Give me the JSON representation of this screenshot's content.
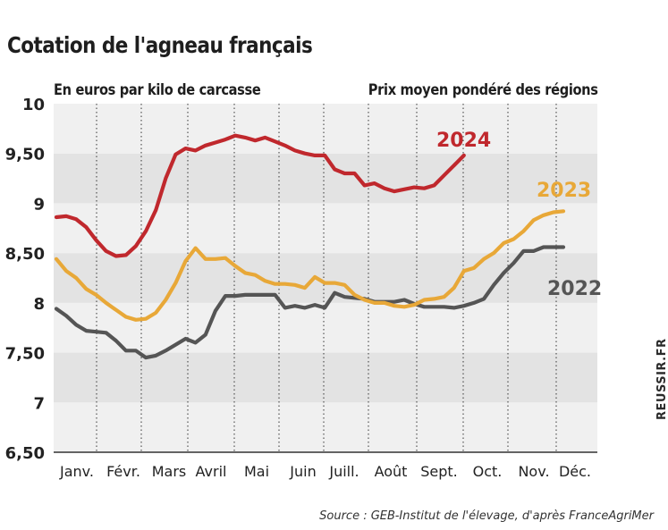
{
  "chart_data": {
    "type": "line",
    "title": "Cotation de l'agneau français",
    "subtitle": "En euros par kilo de carcasse",
    "subtitle_right": "Prix moyen pondéré des régions",
    "ylim": [
      6.5,
      10
    ],
    "y_ticks": [
      {
        "value": 10,
        "label": "10"
      },
      {
        "value": 9.5,
        "label": "9,50"
      },
      {
        "value": 9,
        "label": "9"
      },
      {
        "value": 8.5,
        "label": "8,50"
      },
      {
        "value": 8,
        "label": "8"
      },
      {
        "value": 7.5,
        "label": "7,50"
      },
      {
        "value": 7,
        "label": "7"
      },
      {
        "value": 6.5,
        "label": "6,50"
      }
    ],
    "xlim": [
      0,
      52
    ],
    "x_ticks": [
      "Janv.",
      "Févr.",
      "Mars",
      "Avril",
      "Mai",
      "Juin",
      "Juill.",
      "Août",
      "Sept.",
      "Oct.",
      "Nov.",
      "Déc."
    ],
    "series": [
      {
        "name": "2022",
        "label": "2022",
        "color": "#555555",
        "points": [
          [
            0,
            7.94
          ],
          [
            1,
            7.87
          ],
          [
            2,
            7.78
          ],
          [
            3,
            7.72
          ],
          [
            4,
            7.71
          ],
          [
            5,
            7.7
          ],
          [
            6,
            7.62
          ],
          [
            7,
            7.52
          ],
          [
            8,
            7.52
          ],
          [
            9,
            7.45
          ],
          [
            10,
            7.47
          ],
          [
            11,
            7.52
          ],
          [
            12,
            7.58
          ],
          [
            13,
            7.64
          ],
          [
            14,
            7.6
          ],
          [
            15,
            7.68
          ],
          [
            16,
            7.92
          ],
          [
            17,
            8.07
          ],
          [
            18,
            8.07
          ],
          [
            19,
            8.08
          ],
          [
            20,
            8.08
          ],
          [
            21,
            8.08
          ],
          [
            22,
            8.08
          ],
          [
            23,
            7.95
          ],
          [
            24,
            7.97
          ],
          [
            25,
            7.95
          ],
          [
            26,
            7.98
          ],
          [
            27,
            7.95
          ],
          [
            28,
            8.1
          ],
          [
            29,
            8.06
          ],
          [
            30,
            8.05
          ],
          [
            31,
            8.04
          ],
          [
            32,
            8.01
          ],
          [
            33,
            8.01
          ],
          [
            34,
            8.01
          ],
          [
            35,
            8.03
          ],
          [
            36,
            7.99
          ],
          [
            37,
            7.96
          ],
          [
            38,
            7.96
          ],
          [
            39,
            7.96
          ],
          [
            40,
            7.95
          ],
          [
            41,
            7.97
          ],
          [
            42,
            8.0
          ],
          [
            43,
            8.04
          ],
          [
            44,
            8.18
          ],
          [
            45,
            8.3
          ],
          [
            46,
            8.4
          ],
          [
            47,
            8.52
          ],
          [
            48,
            8.52
          ],
          [
            49,
            8.56
          ],
          [
            50,
            8.56
          ],
          [
            51,
            8.56
          ]
        ]
      },
      {
        "name": "2023",
        "label": "2023",
        "color": "#e8a838",
        "points": [
          [
            0,
            8.44
          ],
          [
            1,
            8.32
          ],
          [
            2,
            8.25
          ],
          [
            3,
            8.14
          ],
          [
            4,
            8.08
          ],
          [
            5,
            8.0
          ],
          [
            6,
            7.93
          ],
          [
            7,
            7.86
          ],
          [
            8,
            7.83
          ],
          [
            9,
            7.84
          ],
          [
            10,
            7.9
          ],
          [
            11,
            8.03
          ],
          [
            12,
            8.2
          ],
          [
            13,
            8.42
          ],
          [
            14,
            8.55
          ],
          [
            15,
            8.44
          ],
          [
            16,
            8.44
          ],
          [
            17,
            8.45
          ],
          [
            18,
            8.37
          ],
          [
            19,
            8.3
          ],
          [
            20,
            8.28
          ],
          [
            21,
            8.22
          ],
          [
            22,
            8.19
          ],
          [
            23,
            8.19
          ],
          [
            24,
            8.18
          ],
          [
            25,
            8.15
          ],
          [
            26,
            8.26
          ],
          [
            27,
            8.2
          ],
          [
            28,
            8.2
          ],
          [
            29,
            8.18
          ],
          [
            30,
            8.08
          ],
          [
            31,
            8.03
          ],
          [
            32,
            8.0
          ],
          [
            33,
            8.0
          ],
          [
            34,
            7.97
          ],
          [
            35,
            7.96
          ],
          [
            36,
            7.98
          ],
          [
            37,
            8.03
          ],
          [
            38,
            8.04
          ],
          [
            39,
            8.06
          ],
          [
            40,
            8.15
          ],
          [
            41,
            8.32
          ],
          [
            42,
            8.35
          ],
          [
            43,
            8.44
          ],
          [
            44,
            8.5
          ],
          [
            45,
            8.6
          ],
          [
            46,
            8.64
          ],
          [
            47,
            8.72
          ],
          [
            48,
            8.83
          ],
          [
            49,
            8.88
          ],
          [
            50,
            8.91
          ],
          [
            51,
            8.92
          ]
        ]
      },
      {
        "name": "2024",
        "label": "2024",
        "color": "#c0282d",
        "points": [
          [
            0,
            8.86
          ],
          [
            1,
            8.87
          ],
          [
            2,
            8.84
          ],
          [
            3,
            8.76
          ],
          [
            4,
            8.63
          ],
          [
            5,
            8.52
          ],
          [
            6,
            8.47
          ],
          [
            7,
            8.48
          ],
          [
            8,
            8.57
          ],
          [
            9,
            8.72
          ],
          [
            10,
            8.93
          ],
          [
            11,
            9.25
          ],
          [
            12,
            9.49
          ],
          [
            13,
            9.55
          ],
          [
            14,
            9.53
          ],
          [
            15,
            9.58
          ],
          [
            16,
            9.61
          ],
          [
            17,
            9.64
          ],
          [
            18,
            9.68
          ],
          [
            19,
            9.66
          ],
          [
            20,
            9.63
          ],
          [
            21,
            9.66
          ],
          [
            22,
            9.62
          ],
          [
            23,
            9.58
          ],
          [
            24,
            9.53
          ],
          [
            25,
            9.5
          ],
          [
            26,
            9.48
          ],
          [
            27,
            9.48
          ],
          [
            28,
            9.34
          ],
          [
            29,
            9.3
          ],
          [
            30,
            9.3
          ],
          [
            31,
            9.18
          ],
          [
            32,
            9.2
          ],
          [
            33,
            9.15
          ],
          [
            34,
            9.12
          ],
          [
            35,
            9.14
          ],
          [
            36,
            9.16
          ],
          [
            37,
            9.15
          ],
          [
            38,
            9.18
          ],
          [
            39,
            9.28
          ],
          [
            40,
            9.38
          ],
          [
            41,
            9.48
          ]
        ]
      }
    ],
    "grid": true
  },
  "watermark": "REUSSIR.FR",
  "source": "Source : GEB-Institut de l'élevage, d'après FranceAgriMer"
}
